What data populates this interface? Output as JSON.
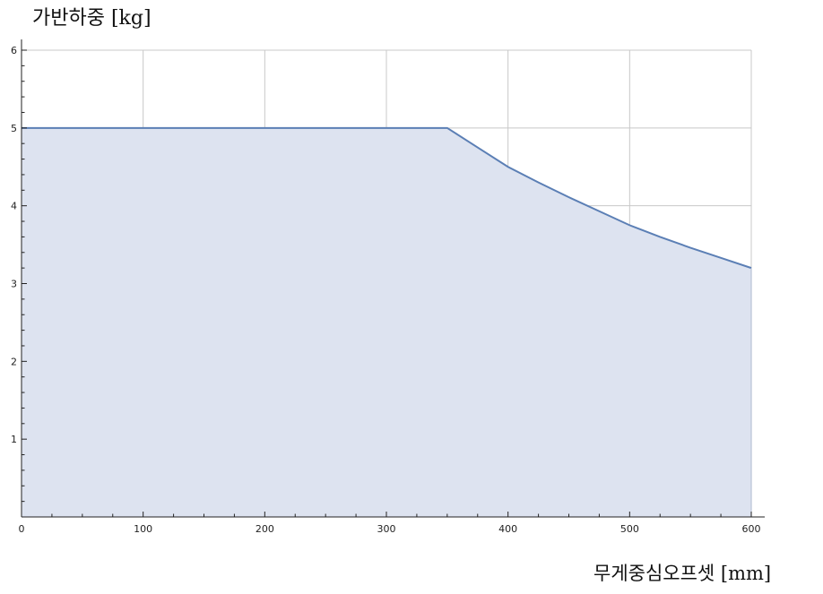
{
  "chart_data": {
    "type": "area",
    "ylabel": "가반하중 [kg]",
    "xlabel": "무게중심오프셋 [mm]",
    "xlim": [
      0,
      600
    ],
    "ylim": [
      0,
      6
    ],
    "x_ticks": [
      0,
      100,
      200,
      300,
      400,
      500,
      600
    ],
    "y_ticks": [
      1,
      2,
      3,
      4,
      5,
      6
    ],
    "grid": true,
    "series": [
      {
        "x": [
          0,
          350,
          375,
          400,
          425,
          450,
          475,
          500,
          525,
          550,
          575,
          600
        ],
        "values": [
          5,
          5,
          4.75,
          4.5,
          4.3,
          4.11,
          3.93,
          3.75,
          3.6,
          3.46,
          3.33,
          3.2
        ]
      }
    ],
    "colors": {
      "line": "#5b7fb5",
      "fill": "#dde3f0",
      "grid": "#c8c8c8",
      "axis": "#222222"
    }
  }
}
